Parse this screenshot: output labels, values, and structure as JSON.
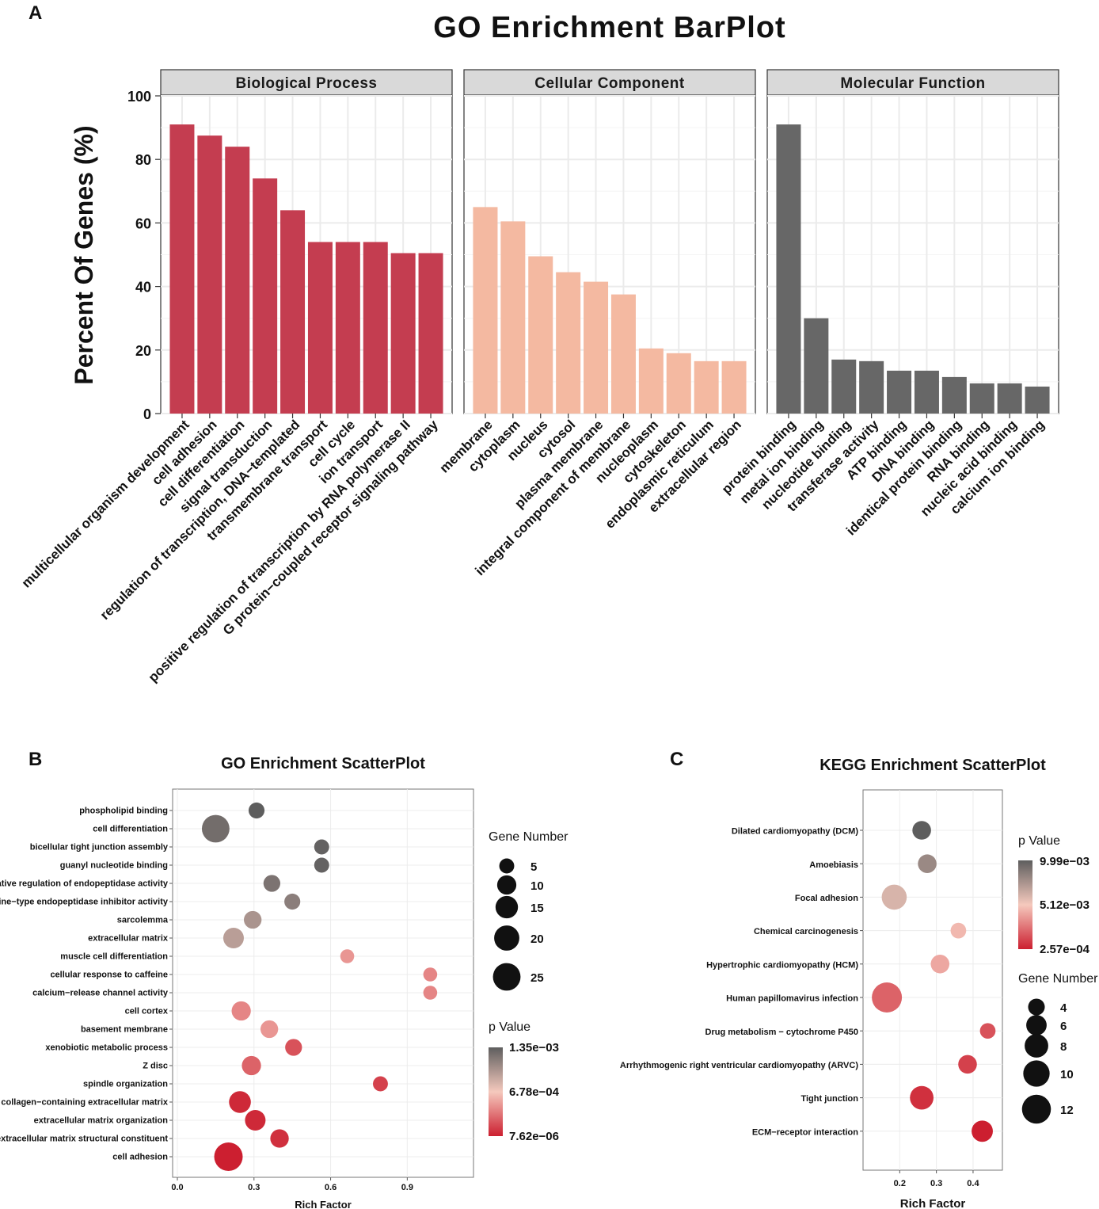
{
  "panels": {
    "a": "A",
    "b": "B",
    "c": "C"
  },
  "colors": {
    "bp": "#c43d50",
    "cc": "#f4b9a1",
    "mf": "#676767",
    "grad_high": "#5e5e5e",
    "grad_mid": "#f5c9bd",
    "grad_low": "#cc1f30"
  },
  "chart_data": [
    {
      "id": "go_barplot",
      "type": "bar",
      "title": "GO Enrichment BarPlot",
      "ylabel": "Percent Of Genes (%)",
      "xlabel": "",
      "ylim": [
        0,
        100
      ],
      "yticks": [
        0,
        20,
        40,
        60,
        80,
        100
      ],
      "grid": true,
      "facets": [
        {
          "name": "Biological Process",
          "color": "#c43d50",
          "categories": [
            "multicellular organism development",
            "cell adhesion",
            "cell differentiation",
            "signal transduction",
            "regulation of transcription, DNA−templated",
            "transmembrane transport",
            "cell cycle",
            "ion transport",
            "positive regulation of transcription by RNA polymerase II",
            "G protein−coupled receptor signaling pathway"
          ],
          "values": [
            91,
            87.5,
            84,
            74,
            64,
            54,
            54,
            54,
            50.5,
            50.5
          ]
        },
        {
          "name": "Cellular Component",
          "color": "#f4b9a1",
          "categories": [
            "membrane",
            "cytoplasm",
            "nucleus",
            "cytosol",
            "plasma membrane",
            "integral component of membrane",
            "nucleoplasm",
            "cytoskeleton",
            "endoplasmic reticulum",
            "extracellular region"
          ],
          "values": [
            65,
            60.5,
            49.5,
            44.5,
            41.5,
            37.5,
            20.5,
            19,
            16.5,
            16.5
          ]
        },
        {
          "name": "Molecular Function",
          "color": "#676767",
          "categories": [
            "protein binding",
            "metal ion binding",
            "nucleotide binding",
            "transferase activity",
            "ATP binding",
            "DNA binding",
            "identical protein binding",
            "RNA binding",
            "nucleic acid binding",
            "calcium ion binding"
          ],
          "values": [
            91,
            30,
            17,
            16.5,
            13.5,
            13.5,
            11.5,
            9.5,
            9.5,
            8.5
          ]
        }
      ]
    },
    {
      "id": "go_scatter",
      "type": "scatter",
      "title": "GO Enrichment ScatterPlot",
      "xlabel": "Rich Factor",
      "ylabel": "",
      "xlim": [
        0,
        1.15
      ],
      "xticks": [
        0.0,
        0.3,
        0.6,
        0.9
      ],
      "xtick_labels": [
        "0.0",
        "0.3",
        "0.6",
        "0.9"
      ],
      "grid": true,
      "categories": [
        "phospholipid binding",
        "cell differentiation",
        "bicellular tight junction assembly",
        "guanyl nucleotide binding",
        "negative regulation of endopeptidase activity",
        "serine−type endopeptidase inhibitor activity",
        "sarcolemma",
        "extracellular matrix",
        "muscle cell differentiation",
        "cellular response to caffeine",
        "calcium−release channel activity",
        "cell cortex",
        "basement membrane",
        "xenobiotic metabolic process",
        "Z disc",
        "spindle organization",
        "collagen−containing extracellular matrix",
        "extracellular matrix organization",
        "extracellular matrix structural constituent",
        "cell adhesion"
      ],
      "x": [
        0.31,
        0.15,
        0.565,
        0.565,
        0.37,
        0.45,
        0.295,
        0.22,
        0.665,
        0.99,
        0.99,
        0.25,
        0.36,
        0.455,
        0.29,
        0.795,
        0.245,
        0.305,
        0.4,
        0.2
      ],
      "gene_number": [
        6,
        25,
        5,
        5,
        7,
        6,
        8,
        12,
        4,
        4,
        4,
        10,
        8,
        7,
        10,
        5,
        14,
        12,
        9,
        27
      ],
      "p_value_t": [
        1.0,
        0.93,
        0.98,
        0.98,
        0.9,
        0.85,
        0.75,
        0.7,
        0.35,
        0.3,
        0.3,
        0.3,
        0.35,
        0.15,
        0.2,
        0.1,
        0.03,
        0.03,
        0.05,
        0.0
      ],
      "size_legend": {
        "title": "Gene Number",
        "values": [
          5,
          10,
          15,
          20,
          25
        ],
        "labels": [
          "5",
          "10",
          "15",
          "20",
          "25"
        ]
      },
      "color_legend": {
        "title": "p Value",
        "labels": [
          "1.35e−03",
          "6.78e−04",
          "7.62e−06"
        ]
      }
    },
    {
      "id": "kegg_scatter",
      "type": "scatter",
      "title": "KEGG Enrichment ScatterPlot",
      "xlabel": "Rich Factor",
      "ylabel": "",
      "xlim": [
        0.1,
        0.48
      ],
      "xticks": [
        0.2,
        0.3,
        0.4
      ],
      "xtick_labels": [
        "0.2",
        "0.3",
        "0.4"
      ],
      "grid": true,
      "categories": [
        "Dilated cardiomyopathy (DCM)",
        "Amoebiasis",
        "Focal adhesion",
        "Chemical carcinogenesis",
        "Hypertrophic cardiomyopathy (HCM)",
        "Human papillomavirus infection",
        "Drug metabolism − cytochrome P450",
        "Arrhythmogenic right ventricular cardiomyopathy (ARVC)",
        "Tight junction",
        "ECM−receptor interaction"
      ],
      "x": [
        0.26,
        0.275,
        0.185,
        0.36,
        0.31,
        0.165,
        0.44,
        0.385,
        0.26,
        0.425
      ],
      "gene_number": [
        5,
        5,
        9,
        3.5,
        5,
        13,
        3.5,
        5,
        8,
        6.5
      ],
      "p_value_t": [
        1.0,
        0.8,
        0.6,
        0.45,
        0.4,
        0.2,
        0.15,
        0.1,
        0.05,
        0.0
      ],
      "size_legend": {
        "title": "Gene Number",
        "values": [
          4,
          6,
          8,
          10,
          12
        ],
        "labels": [
          "4",
          "6",
          "8",
          "10",
          "12"
        ]
      },
      "color_legend": {
        "title": "p Value",
        "labels": [
          "9.99e−03",
          "5.12e−03",
          "2.57e−04"
        ]
      }
    }
  ]
}
